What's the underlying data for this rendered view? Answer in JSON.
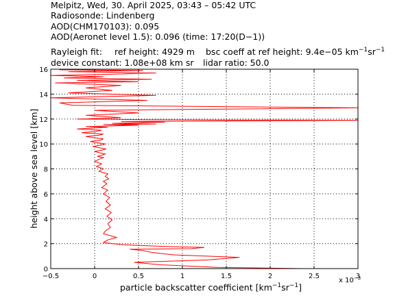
{
  "header": {
    "line1": "Melpitz, Wed, 30. April 2025, 03:43 – 05:42 UTC",
    "line2": "Radiosonde: Lindenberg",
    "line3": "AOD(CHM170103): 0.095",
    "line4": "AOD(Aeronet level 1.5): 0.096   (time: 17:20(D−1))",
    "rayleigh_label": "Rayleigh fit:",
    "ref_height": "ref height: 4929 m",
    "bsc_coeff_prefix": "bsc coeff at ref height: 9.4e−05 km",
    "bsc_unit_sup1": "−1",
    "bsc_unit_sr": "sr",
    "bsc_unit_sup2": "−1",
    "device_constant": "device constant: 1.08e+08 km sr",
    "lidar_ratio": "lidar ratio: 50.0"
  },
  "chart_data": {
    "type": "line",
    "xlabel_main": "particle backscatter coefficient [km",
    "xlabel_sup1": "−1",
    "xlabel_sr": "sr",
    "xlabel_sup2": "−1",
    "xlabel_end": "]",
    "ylabel": "height above sea level [km]",
    "x_exponent_label": "x 10",
    "x_exponent_sup": "−3",
    "xlim": [
      -0.5,
      3.0
    ],
    "ylim": [
      0,
      16
    ],
    "xticks": [
      -0.5,
      0,
      0.5,
      1,
      1.5,
      2,
      2.5,
      3
    ],
    "xtick_labels": [
      "−0.5",
      "0",
      "0.5",
      "1",
      "1.5",
      "2",
      "2.5",
      "3"
    ],
    "yticks": [
      0,
      2,
      4,
      6,
      8,
      10,
      12,
      14,
      16
    ],
    "ytick_labels": [
      "0",
      "2",
      "4",
      "6",
      "8",
      "10",
      "12",
      "14",
      "16"
    ],
    "grid": true,
    "line_color": "#ff0000",
    "series": [
      {
        "x": [
          2.35,
          1.4,
          0.75,
          0.45,
          1.3,
          1.65,
          0.9,
          0.65,
          0.55,
          0.4,
          1.1,
          1.25,
          0.7,
          0.35,
          0.2,
          0.1,
          0.15,
          0.25,
          0.1,
          0.12,
          0.18,
          0.15,
          0.2,
          0.14,
          0.19,
          0.12,
          0.18,
          0.13,
          0.17,
          0.1,
          0.15,
          0.08,
          0.14,
          0.1,
          0.16,
          0.12,
          0.15,
          0.05,
          0.1,
          0.02,
          0.08,
          0.0,
          0.06,
          0.1,
          0.03,
          0.08,
          0.12,
          0.05,
          0.0,
          0.08,
          0.13,
          0.05,
          -0.02,
          0.07,
          0.12,
          0.03,
          -0.05,
          0.06,
          0.1,
          0.0,
          -0.1,
          0.05,
          0.1,
          -0.15,
          0.0,
          0.08,
          -0.2,
          0.05,
          0.15,
          -0.1,
          0.2,
          0.5,
          0.1,
          0.7,
          0.2,
          0.4,
          0.8,
          0.3,
          1.5,
          3.0,
          0.6,
          -0.2,
          0.3,
          -0.1,
          0.5,
          0.0,
          3.0,
          -0.25,
          -0.4,
          0.6,
          -0.5,
          0.7,
          -0.3,
          0.2,
          -0.1,
          0.3,
          -0.45,
          0.5,
          -0.2,
          0.65,
          -0.35,
          0.1,
          -0.5,
          0.2,
          0.7,
          -0.3,
          0.55,
          -0.4,
          0.1
        ],
        "y": [
          0.0,
          0.1,
          0.3,
          0.5,
          0.7,
          0.9,
          1.1,
          1.3,
          1.45,
          1.55,
          1.6,
          1.7,
          1.8,
          1.9,
          2.0,
          2.1,
          2.3,
          2.5,
          2.8,
          3.0,
          3.3,
          3.6,
          3.9,
          4.2,
          4.5,
          4.8,
          5.1,
          5.4,
          5.7,
          6.0,
          6.3,
          6.5,
          6.8,
          7.0,
          7.2,
          7.4,
          7.6,
          7.8,
          8.0,
          8.2,
          8.4,
          8.6,
          8.8,
          8.9,
          9.0,
          9.1,
          9.2,
          9.3,
          9.4,
          9.5,
          9.6,
          9.7,
          9.8,
          9.9,
          10.0,
          10.1,
          10.2,
          10.3,
          10.4,
          10.5,
          10.6,
          10.7,
          10.8,
          10.9,
          11.0,
          11.1,
          11.2,
          11.3,
          11.35,
          11.4,
          11.45,
          11.5,
          11.55,
          11.6,
          11.65,
          11.7,
          11.75,
          11.8,
          11.85,
          11.9,
          11.95,
          12.0,
          12.1,
          12.3,
          12.5,
          12.7,
          12.9,
          13.1,
          13.3,
          13.5,
          13.7,
          13.9,
          14.1,
          14.3,
          14.5,
          14.7,
          14.9,
          15.0,
          15.1,
          15.2,
          15.3,
          15.4,
          15.5,
          15.6,
          15.7,
          15.8,
          15.9,
          15.95,
          16.0
        ]
      }
    ]
  }
}
